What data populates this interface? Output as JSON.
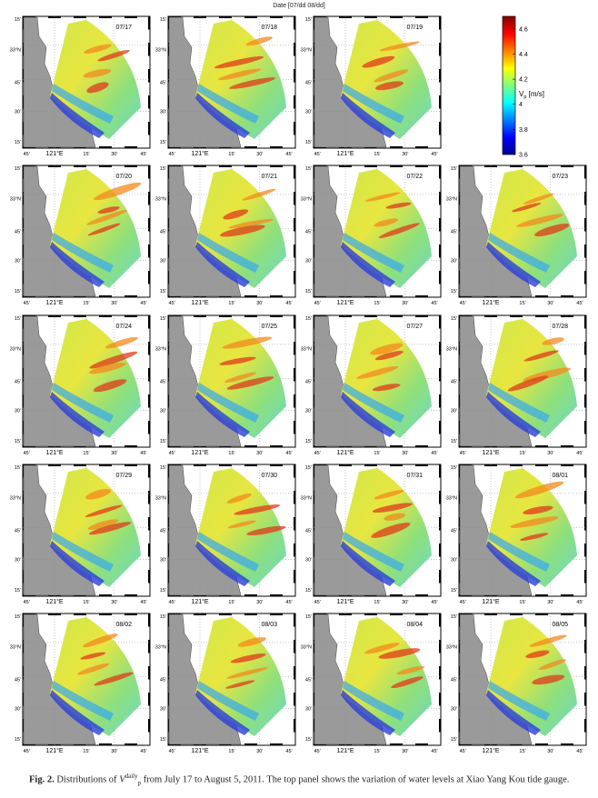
{
  "figure": {
    "top_title": "Date [07/dd 08/dd]",
    "rows": [
      [
        "07/17",
        "07/18",
        "07/19"
      ],
      [
        "07/20",
        "07/21",
        "07/22",
        "07/23"
      ],
      [
        "07/24",
        "07/25",
        "07/27",
        "07/28"
      ],
      [
        "07/29",
        "07/30",
        "07/31",
        "08/01"
      ],
      [
        "08/02",
        "08/03",
        "08/04",
        "08/05"
      ]
    ],
    "lat_labels": [
      "15'",
      "33°N",
      "45'",
      "30'",
      "15'"
    ],
    "lon_labels": [
      "45'",
      "121°E",
      "15'",
      "30'",
      "45'"
    ],
    "colorbar": {
      "label": "V",
      "label_sub": "p",
      "label_unit": "[m/s]",
      "ticks": [
        "4.6",
        "4.4",
        "4.2",
        "4",
        "3.8",
        "3.6"
      ],
      "min": 3.6,
      "max": 4.7
    }
  },
  "caption": {
    "fig_label": "Fig. 2.",
    "text_before": "Distributions of ",
    "symbol": "V",
    "sup": "daily",
    "sub": "p",
    "text_after": " from July 17 to August 5, 2011. The top panel shows the variation of water levels at Xiao Yang Kou tide gauge."
  }
}
